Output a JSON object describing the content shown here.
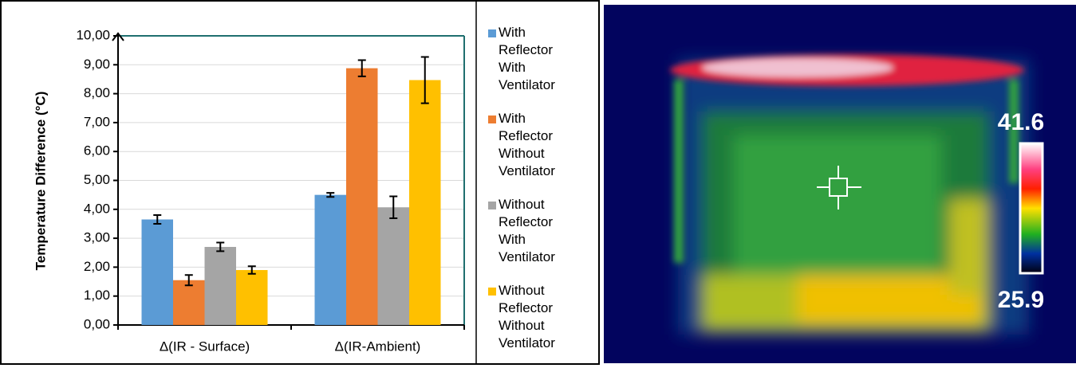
{
  "chart_data": {
    "type": "bar",
    "y_label": "Temperature Difference (°C)",
    "categories": [
      "Δ(IR - Surface)",
      "Δ(IR-Ambient)"
    ],
    "series": [
      {
        "name": "With Reflector With Ventilator",
        "color": "#5b9bd5",
        "values": [
          3.65,
          4.5
        ],
        "errors": [
          0.15,
          0.07
        ]
      },
      {
        "name": "With Reflector Without Ventilator",
        "color": "#ed7d31",
        "values": [
          1.55,
          8.88
        ],
        "errors": [
          0.18,
          0.28
        ]
      },
      {
        "name": "Without Reflector With Ventilator",
        "color": "#a5a5a5",
        "values": [
          2.7,
          4.07
        ],
        "errors": [
          0.15,
          0.38
        ]
      },
      {
        "name": "Without Reflector Without Ventilator",
        "color": "#ffc000",
        "values": [
          1.9,
          8.47
        ],
        "errors": [
          0.13,
          0.8
        ]
      }
    ],
    "ylim": [
      0,
      10
    ],
    "yticks": [
      {
        "value": 0,
        "label": "0,00"
      },
      {
        "value": 1,
        "label": "1,00"
      },
      {
        "value": 2,
        "label": "2,00"
      },
      {
        "value": 3,
        "label": "3,00"
      },
      {
        "value": 4,
        "label": "4,00"
      },
      {
        "value": 5,
        "label": "5,00"
      },
      {
        "value": 6,
        "label": "6,00"
      },
      {
        "value": 7,
        "label": "7,00"
      },
      {
        "value": 8,
        "label": "8,00"
      },
      {
        "value": 9,
        "label": "9,00"
      },
      {
        "value": 10,
        "label": "10,00"
      }
    ],
    "grid": true
  },
  "thermal_image": {
    "scale_max": 41.6,
    "scale_min": 25.9
  }
}
